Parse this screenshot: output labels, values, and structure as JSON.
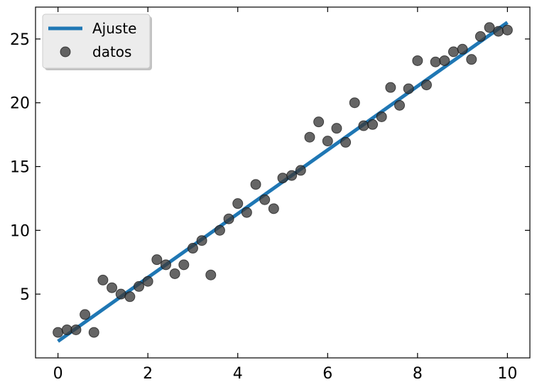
{
  "chart_data": {
    "type": "scatter",
    "title": "",
    "xlabel": "",
    "ylabel": "",
    "xlim": [
      -0.5,
      10.5
    ],
    "ylim": [
      0.0,
      27.5
    ],
    "xticks": [
      0,
      2,
      4,
      6,
      8,
      10
    ],
    "yticks": [
      5,
      10,
      15,
      20,
      25
    ],
    "xtick_labels": [
      "0",
      "2",
      "4",
      "6",
      "8",
      "10"
    ],
    "ytick_labels": [
      "5",
      "10",
      "15",
      "20",
      "25"
    ],
    "grid": false,
    "legend_position": "top-left",
    "legend": [
      {
        "label": "Ajuste",
        "kind": "line",
        "color": "#1f77b4"
      },
      {
        "label": "datos",
        "kind": "marker",
        "color": "#3a3a3a"
      }
    ],
    "series": [
      {
        "name": "Ajuste",
        "kind": "line",
        "color": "#1f77b4",
        "x": [
          0,
          10
        ],
        "y": [
          1.3,
          26.3
        ]
      },
      {
        "name": "datos",
        "kind": "scatter",
        "color": "#3a3a3a",
        "x": [
          0.0,
          0.2,
          0.4,
          0.6,
          0.8,
          1.0,
          1.2,
          1.4,
          1.6,
          1.8,
          2.0,
          2.2,
          2.4,
          2.6,
          2.8,
          3.0,
          3.2,
          3.4,
          3.6,
          3.8,
          4.0,
          4.2,
          4.4,
          4.6,
          4.8,
          5.0,
          5.2,
          5.4,
          5.6,
          5.8,
          6.0,
          6.2,
          6.4,
          6.6,
          6.8,
          7.0,
          7.2,
          7.4,
          7.6,
          7.8,
          8.0,
          8.2,
          8.4,
          8.6,
          8.8,
          9.0,
          9.2,
          9.4,
          9.6,
          9.8,
          10.0
        ],
        "y": [
          2.0,
          2.2,
          2.2,
          3.4,
          2.0,
          6.1,
          5.5,
          5.0,
          4.8,
          5.6,
          6.0,
          7.7,
          7.3,
          6.6,
          7.3,
          8.6,
          9.2,
          6.5,
          10.0,
          10.9,
          12.1,
          11.4,
          13.6,
          12.4,
          11.7,
          14.1,
          14.3,
          14.7,
          17.3,
          18.5,
          17.0,
          18.0,
          16.9,
          20.0,
          18.2,
          18.3,
          18.9,
          21.2,
          19.8,
          21.1,
          23.3,
          21.4,
          23.2,
          23.3,
          24.0,
          24.2,
          23.4,
          25.2,
          25.9,
          25.6,
          25.7
        ]
      }
    ]
  }
}
